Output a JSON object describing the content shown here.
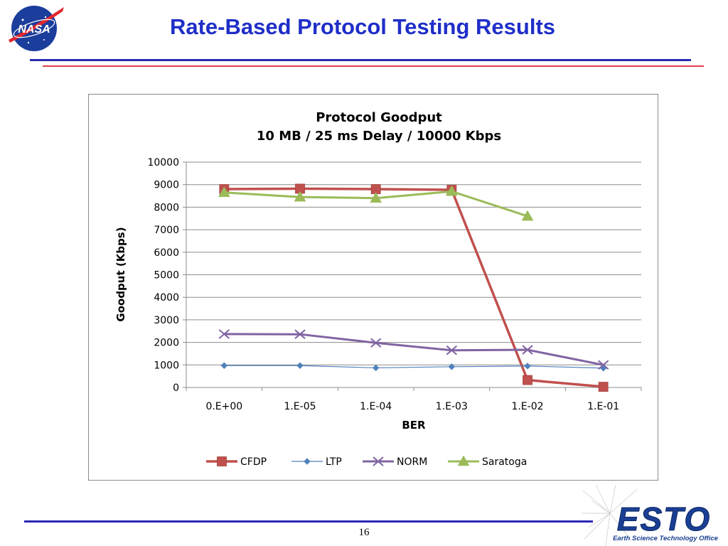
{
  "slide": {
    "title": "Rate-Based Protocol Testing Results",
    "page_number": "16",
    "logo_left": "NASA",
    "logo_right": "ESTO",
    "logo_right_caption": "Earth Science Technology Office"
  },
  "colors": {
    "title": "#1f2ec8",
    "rule_blue": "#2a2ab5",
    "rule_red": "#e0414e",
    "CFDP": "#c0504d",
    "LTP": "#4f81bd",
    "NORM": "#8064a2",
    "Saratoga": "#9bbb59"
  },
  "chart_data": {
    "type": "line",
    "title": "Protocol Goodput",
    "subtitle": "10 MB / 25 ms Delay / 10000 Kbps",
    "xlabel": "BER",
    "ylabel": "Goodput (Kbps)",
    "categories": [
      "0.E+00",
      "1.E-05",
      "1.E-04",
      "1.E-03",
      "1.E-02",
      "1.E-01"
    ],
    "ylim": [
      0,
      10000
    ],
    "yticks": [
      0,
      1000,
      2000,
      3000,
      4000,
      5000,
      6000,
      7000,
      8000,
      9000,
      10000
    ],
    "grid": true,
    "legend_position": "bottom",
    "series": [
      {
        "name": "CFDP",
        "marker": "square",
        "color": "#c0504d",
        "values": [
          8800,
          8820,
          8800,
          8770,
          330,
          30
        ]
      },
      {
        "name": "LTP",
        "marker": "diamond",
        "color": "#4f81bd",
        "values": [
          970,
          970,
          870,
          920,
          950,
          860
        ]
      },
      {
        "name": "NORM",
        "marker": "x",
        "color": "#8064a2",
        "values": [
          2370,
          2360,
          1980,
          1650,
          1670,
          1000
        ]
      },
      {
        "name": "Saratoga",
        "marker": "triangle",
        "color": "#9bbb59",
        "values": [
          8650,
          8450,
          8400,
          8700,
          7600,
          null
        ]
      }
    ]
  }
}
